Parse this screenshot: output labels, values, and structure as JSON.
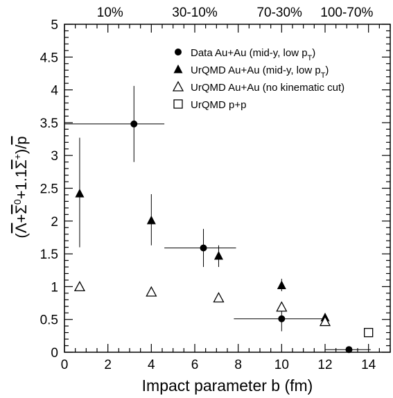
{
  "chart_data": {
    "type": "scatter",
    "title": "",
    "xlabel": "Impact parameter b (fm)",
    "ylabel_parts": {
      "open": "(",
      "lambda": "Λ",
      "plus1": "+",
      "sigma0": "Σ",
      "sigma0_sup": "0",
      "plus2": "+1.1",
      "sigmap": "Σ",
      "sigmap_sup": "+",
      "close": ")/",
      "p": "p"
    },
    "xlim": [
      0,
      15
    ],
    "ylim": [
      0,
      5
    ],
    "x_ticks": [
      0,
      2,
      4,
      6,
      8,
      10,
      12,
      14
    ],
    "x_tick_labels": [
      "0",
      "2",
      "4",
      "6",
      "8",
      "10",
      "12",
      "14"
    ],
    "y_ticks": [
      0,
      0.5,
      1,
      1.5,
      2,
      2.5,
      3,
      3.5,
      4,
      4.5,
      5
    ],
    "y_tick_labels": [
      "0",
      "0.5",
      "1",
      "1.5",
      "2",
      "2.5",
      "3",
      "3.5",
      "4",
      "4.5",
      "5"
    ],
    "top_axis_labels": [
      {
        "text": "10%",
        "x": 2.1
      },
      {
        "text": "30-10%",
        "x": 6.0
      },
      {
        "text": "70-30%",
        "x": 9.9
      },
      {
        "text": "100-70%",
        "x": 13.0
      }
    ],
    "legend_position": "top-right",
    "series": [
      {
        "name": "Data Au+Au (mid-y, low pT)",
        "legend_main": "Data Au+Au (mid-y, low p",
        "legend_sub": "T",
        "legend_end": ")",
        "marker": "filled-circle",
        "points": [
          {
            "x": 3.2,
            "y": 3.48,
            "xlo": 0.0,
            "xhi": 4.6,
            "ylo": 2.9,
            "yhi": 4.06
          },
          {
            "x": 6.4,
            "y": 1.59,
            "xlo": 4.6,
            "xhi": 7.9,
            "ylo": 1.3,
            "yhi": 1.88
          },
          {
            "x": 10.0,
            "y": 0.51,
            "xlo": 7.8,
            "xhi": 12.0,
            "ylo": 0.32,
            "yhi": 0.69
          },
          {
            "x": 13.1,
            "y": 0.04,
            "xlo": 12.0,
            "xhi": 14.1,
            "ylo": 0.02,
            "yhi": 0.06
          }
        ]
      },
      {
        "name": "UrQMD Au+Au (mid-y, low pT)",
        "legend_main": "UrQMD Au+Au (mid-y, low p",
        "legend_sub": "T",
        "legend_end": ")",
        "marker": "filled-triangle",
        "points": [
          {
            "x": 0.7,
            "y": 2.42,
            "ylo": 1.6,
            "yhi": 3.27
          },
          {
            "x": 4.0,
            "y": 2.01,
            "ylo": 1.63,
            "yhi": 2.41
          },
          {
            "x": 7.1,
            "y": 1.47,
            "ylo": 1.3,
            "yhi": 1.63
          },
          {
            "x": 10.0,
            "y": 1.02,
            "ylo": 0.93,
            "yhi": 1.12
          },
          {
            "x": 12.0,
            "y": 0.53,
            "ylo": 0.5,
            "yhi": 0.56
          }
        ]
      },
      {
        "name": "UrQMD Au+Au (no kinematic cut)",
        "legend_main": "UrQMD Au+Au (no kinematic cut)",
        "legend_sub": "",
        "legend_end": "",
        "marker": "open-triangle",
        "points": [
          {
            "x": 0.7,
            "y": 1.0
          },
          {
            "x": 4.0,
            "y": 0.92
          },
          {
            "x": 7.1,
            "y": 0.83
          },
          {
            "x": 10.0,
            "y": 0.69
          },
          {
            "x": 12.0,
            "y": 0.47
          }
        ]
      },
      {
        "name": "UrQMD p+p",
        "legend_main": "UrQMD p+p",
        "legend_sub": "",
        "legend_end": "",
        "marker": "open-square",
        "points": [
          {
            "x": 14.0,
            "y": 0.3
          }
        ]
      }
    ]
  }
}
